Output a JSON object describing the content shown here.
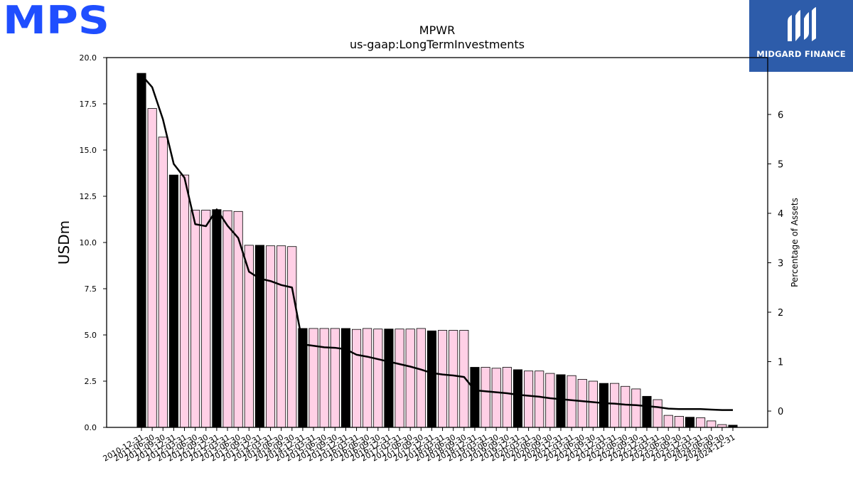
{
  "logos": {
    "mps_text": "MPS",
    "midgard_text": "MIDGARD FINANCE"
  },
  "colors": {
    "bar_black": "#000000",
    "bar_pink": "#ffd0e6",
    "line": "#000000",
    "mps_blue": "#1f4eff",
    "midgard_bg": "#2d5caa"
  },
  "chart_data": {
    "type": "bar",
    "title": "MPWR",
    "subtitle": "us-gaap:LongTermInvestments",
    "ylabel": "USDm",
    "y2label": "Percentage of Assets",
    "ylim": [
      0,
      20
    ],
    "y2lim": [
      -0.33,
      7.15
    ],
    "yticks": [
      "0.0",
      "2.5",
      "5.0",
      "7.5",
      "10.0",
      "12.5",
      "15.0",
      "17.5",
      "20.0"
    ],
    "y2ticks": [
      "0",
      "1",
      "2",
      "3",
      "4",
      "5",
      "6"
    ],
    "categories": [
      "2010-12-31",
      "2011-06-30",
      "2011-09-30",
      "2011-12-31",
      "2012-03-31",
      "2012-06-30",
      "2012-09-30",
      "2012-12-31",
      "2013-03-31",
      "2013-06-30",
      "2013-09-30",
      "2013-12-31",
      "2014-03-31",
      "2014-06-30",
      "2014-09-30",
      "2014-12-31",
      "2015-03-31",
      "2015-06-30",
      "2015-09-30",
      "2015-12-31",
      "2016-03-31",
      "2016-06-30",
      "2016-09-30",
      "2016-12-31",
      "2017-03-31",
      "2017-06-30",
      "2017-09-30",
      "2017-12-31",
      "2018-03-31",
      "2018-06-30",
      "2018-09-30",
      "2018-12-31",
      "2019-03-31",
      "2019-06-30",
      "2019-09-30",
      "2019-12-31",
      "2020-03-31",
      "2020-06-30",
      "2020-09-30",
      "2020-12-31",
      "2021-03-31",
      "2021-06-30",
      "2021-09-30",
      "2021-12-31",
      "2022-03-31",
      "2022-06-30",
      "2022-09-30",
      "2022-12-31",
      "2023-03-31",
      "2023-06-30",
      "2023-09-30",
      "2023-12-31",
      "2024-03-31",
      "2024-06-30",
      "2024-09-30",
      "2024-12-31"
    ],
    "series": [
      {
        "values": [
          19.15,
          17.25,
          15.7,
          13.65,
          13.65,
          11.75,
          11.75,
          11.78,
          11.72,
          11.68,
          9.85,
          9.85,
          9.82,
          9.82,
          9.78,
          5.35,
          5.35,
          5.35,
          5.35,
          5.35,
          5.3,
          5.35,
          5.32,
          5.32,
          5.32,
          5.32,
          5.35,
          5.22,
          5.25,
          5.25,
          5.25,
          3.25,
          3.25,
          3.2,
          3.25,
          3.12,
          3.05,
          3.05,
          2.92,
          2.85,
          2.8,
          2.6,
          2.5,
          2.38,
          2.38,
          2.22,
          2.08,
          1.68,
          1.5,
          0.65,
          0.6,
          0.55,
          0.52,
          0.35,
          0.15,
          0.12
        ],
        "highlight": [
          true,
          false,
          false,
          true,
          false,
          false,
          false,
          true,
          false,
          false,
          false,
          true,
          false,
          false,
          false,
          true,
          false,
          false,
          false,
          true,
          false,
          false,
          false,
          true,
          false,
          false,
          false,
          true,
          false,
          false,
          false,
          true,
          false,
          false,
          false,
          true,
          false,
          false,
          false,
          true,
          false,
          false,
          false,
          true,
          false,
          false,
          false,
          true,
          false,
          false,
          false,
          true,
          false,
          false,
          false,
          true
        ]
      },
      {
        "axis": "right",
        "values": [
          6.8,
          6.55,
          5.9,
          5.0,
          4.72,
          3.78,
          3.74,
          4.08,
          3.75,
          3.5,
          2.82,
          2.68,
          2.63,
          2.55,
          2.5,
          1.35,
          1.32,
          1.29,
          1.28,
          1.25,
          1.14,
          1.1,
          1.05,
          1.0,
          0.95,
          0.9,
          0.84,
          0.77,
          0.74,
          0.72,
          0.69,
          0.42,
          0.4,
          0.38,
          0.36,
          0.33,
          0.31,
          0.29,
          0.26,
          0.24,
          0.22,
          0.2,
          0.18,
          0.16,
          0.15,
          0.13,
          0.12,
          0.1,
          0.08,
          0.05,
          0.04,
          0.04,
          0.04,
          0.03,
          0.02,
          0.02
        ]
      }
    ]
  }
}
